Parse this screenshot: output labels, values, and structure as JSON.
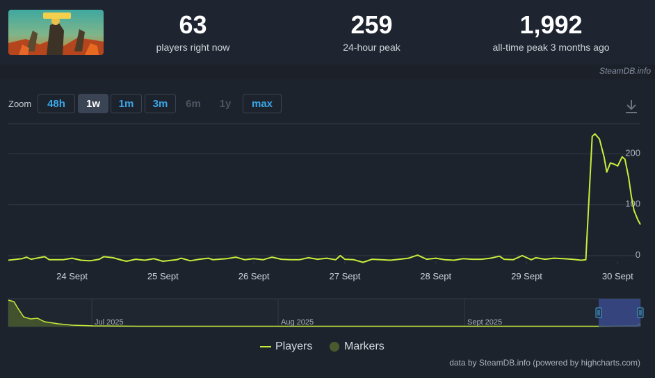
{
  "header": {
    "game_image_alt": "FIREBREAK",
    "stats": [
      {
        "value": "63",
        "label": "players right now"
      },
      {
        "value": "259",
        "label": "24-hour peak"
      },
      {
        "value": "1,992",
        "label": "all-time peak 3 months ago"
      }
    ],
    "credit": "SteamDB.info"
  },
  "zoom": {
    "label": "Zoom",
    "buttons": [
      {
        "label": "48h",
        "state": "enabled"
      },
      {
        "label": "1w",
        "state": "active"
      },
      {
        "label": "1m",
        "state": "enabled"
      },
      {
        "label": "3m",
        "state": "enabled"
      },
      {
        "label": "6m",
        "state": "disabled"
      },
      {
        "label": "1y",
        "state": "disabled"
      },
      {
        "label": "max",
        "state": "enabled"
      }
    ]
  },
  "colors": {
    "series": "#c8ee3c",
    "markers": "#4a5a2e",
    "grid": "#323a47",
    "navigator_selection": "#3a4a8a"
  },
  "chart_data": {
    "type": "line",
    "y_ticks": [
      "0",
      "100",
      "200"
    ],
    "ylim": [
      0,
      270
    ],
    "x_ticks": [
      "24 Sept",
      "25 Sept",
      "26 Sept",
      "27 Sept",
      "28 Sept",
      "29 Sept",
      "30 Sept"
    ],
    "xlim": [
      23.3,
      30.25
    ],
    "grid": true,
    "series": [
      {
        "name": "Players",
        "points": [
          [
            23.3,
            2
          ],
          [
            23.45,
            5
          ],
          [
            23.5,
            8
          ],
          [
            23.55,
            4
          ],
          [
            23.7,
            9
          ],
          [
            23.75,
            3
          ],
          [
            23.9,
            3
          ],
          [
            24.0,
            6
          ],
          [
            24.1,
            2
          ],
          [
            24.2,
            1
          ],
          [
            24.3,
            4
          ],
          [
            24.35,
            9
          ],
          [
            24.45,
            7
          ],
          [
            24.55,
            2
          ],
          [
            24.6,
            0
          ],
          [
            24.7,
            4
          ],
          [
            24.8,
            2
          ],
          [
            24.9,
            5
          ],
          [
            25.0,
            0
          ],
          [
            25.15,
            3
          ],
          [
            25.2,
            6
          ],
          [
            25.3,
            1
          ],
          [
            25.4,
            4
          ],
          [
            25.5,
            6
          ],
          [
            25.55,
            3
          ],
          [
            25.7,
            5
          ],
          [
            25.8,
            8
          ],
          [
            25.9,
            3
          ],
          [
            26.0,
            5
          ],
          [
            26.1,
            3
          ],
          [
            26.2,
            8
          ],
          [
            26.3,
            4
          ],
          [
            26.4,
            3
          ],
          [
            26.5,
            3
          ],
          [
            26.6,
            7
          ],
          [
            26.7,
            4
          ],
          [
            26.8,
            6
          ],
          [
            26.9,
            3
          ],
          [
            26.95,
            11
          ],
          [
            27.0,
            4
          ],
          [
            27.1,
            3
          ],
          [
            27.2,
            -2
          ],
          [
            27.3,
            4
          ],
          [
            27.4,
            3
          ],
          [
            27.5,
            2
          ],
          [
            27.6,
            4
          ],
          [
            27.7,
            6
          ],
          [
            27.8,
            12
          ],
          [
            27.9,
            4
          ],
          [
            28.0,
            6
          ],
          [
            28.1,
            3
          ],
          [
            28.2,
            2
          ],
          [
            28.3,
            5
          ],
          [
            28.4,
            4
          ],
          [
            28.5,
            4
          ],
          [
            28.6,
            6
          ],
          [
            28.7,
            10
          ],
          [
            28.75,
            4
          ],
          [
            28.85,
            3
          ],
          [
            28.95,
            11
          ],
          [
            29.05,
            3
          ],
          [
            29.1,
            7
          ],
          [
            29.2,
            4
          ],
          [
            29.3,
            6
          ],
          [
            29.4,
            5
          ],
          [
            29.5,
            4
          ],
          [
            29.6,
            2
          ],
          [
            29.65,
            3
          ],
          [
            29.72,
            245
          ],
          [
            29.75,
            250
          ],
          [
            29.8,
            240
          ],
          [
            29.85,
            205
          ],
          [
            29.88,
            175
          ],
          [
            29.92,
            193
          ],
          [
            29.97,
            190
          ],
          [
            30.0,
            187
          ],
          [
            30.05,
            205
          ],
          [
            30.08,
            200
          ],
          [
            30.12,
            165
          ],
          [
            30.15,
            128
          ],
          [
            30.18,
            100
          ],
          [
            30.22,
            82
          ],
          [
            30.25,
            72
          ]
        ]
      }
    ],
    "navigator": {
      "x_ticks": [
        "Jul 2025",
        "Aug 2025",
        "Sept 2025"
      ]
    },
    "legend": [
      {
        "name": "Players",
        "symbol": "line"
      },
      {
        "name": "Markers",
        "symbol": "circle"
      }
    ],
    "legend_position": "bottom-center",
    "credit": "data by SteamDB.info (powered by highcharts.com)"
  }
}
